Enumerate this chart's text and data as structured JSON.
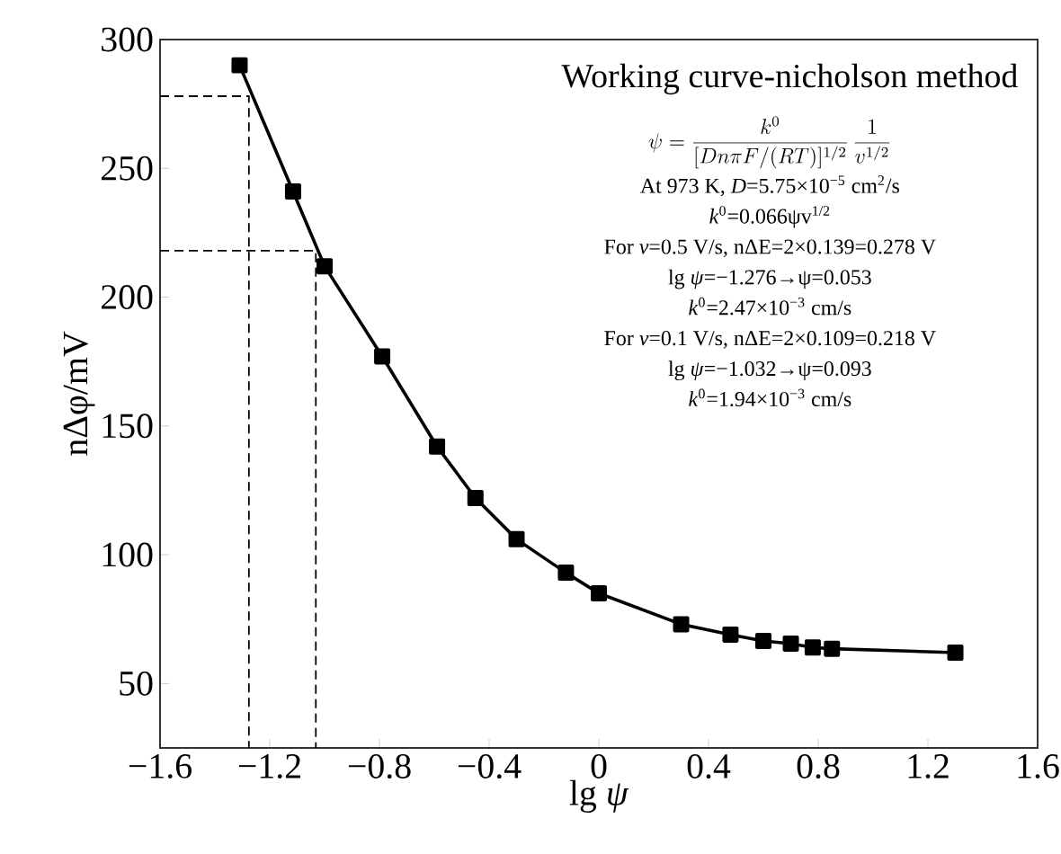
{
  "chart_data": {
    "type": "line",
    "title": "Working curve-nicholson method",
    "xlabel": "lg *ψ*",
    "ylabel": "nΔφ/mV",
    "annotations": [
      "\\psi=\\frac{k^{0}}{[Dn\\pi F/(RT)]^{1/2}}\\,\\frac{1}{v^{1/2}}",
      "At 973 K, *D*=5.75×10$^{−5}$ cm$^{2}$/s",
      "*k*$^{0}$=0.066ψv$^{1/2}$",
      "For *v*=0.5 V/s, nΔE=2×0.139=0.278 V",
      "lg *ψ*=−1.276→ψ=0.053",
      "*k*$^{0}$=2.47×10$^{−3}$ cm/s",
      "For *v*=0.1 V/s, nΔE=2×0.109=0.218 V",
      "lg *ψ*=−1.032→ψ=0.093",
      "*k*$^{0}$=1.94×10$^{−3}$ cm/s"
    ],
    "xlim": [
      -1.6,
      1.6
    ],
    "ylim": [
      25,
      300
    ],
    "xticks": [
      {
        "value": -1.6,
        "label": "−1.6"
      },
      {
        "value": -1.2,
        "label": "−1.2"
      },
      {
        "value": -0.8,
        "label": "−0.8"
      },
      {
        "value": -0.4,
        "label": "−0.4"
      },
      0,
      0.4,
      0.8,
      1.2,
      1.6
    ],
    "yticks": [
      50,
      100,
      150,
      200,
      250,
      300
    ],
    "series": [
      {
        "color": "#000000",
        "marker": "square",
        "line_style": "solid",
        "x": [
          -1.31,
          -1.115,
          -1.0,
          -0.79,
          -0.59,
          -0.45,
          -0.3,
          -0.12,
          0.0,
          0.3,
          0.48,
          0.6,
          0.7,
          0.78,
          0.85,
          1.3
        ],
        "values": [
          290,
          241,
          212,
          177,
          142,
          122,
          106,
          93,
          85,
          73,
          69,
          66.5,
          65.5,
          64,
          63.5,
          62
        ]
      },
      {
        "color": "#000000",
        "marker": "none",
        "line_style": "dashed",
        "x": [
          -1.6,
          -1.276,
          -1.276
        ],
        "values": [
          278,
          278,
          25
        ]
      },
      {
        "color": "#000000",
        "marker": "none",
        "line_style": "dashed",
        "x": [
          -1.6,
          -1.032,
          -1.032
        ],
        "values": [
          218,
          218,
          25
        ]
      }
    ]
  }
}
